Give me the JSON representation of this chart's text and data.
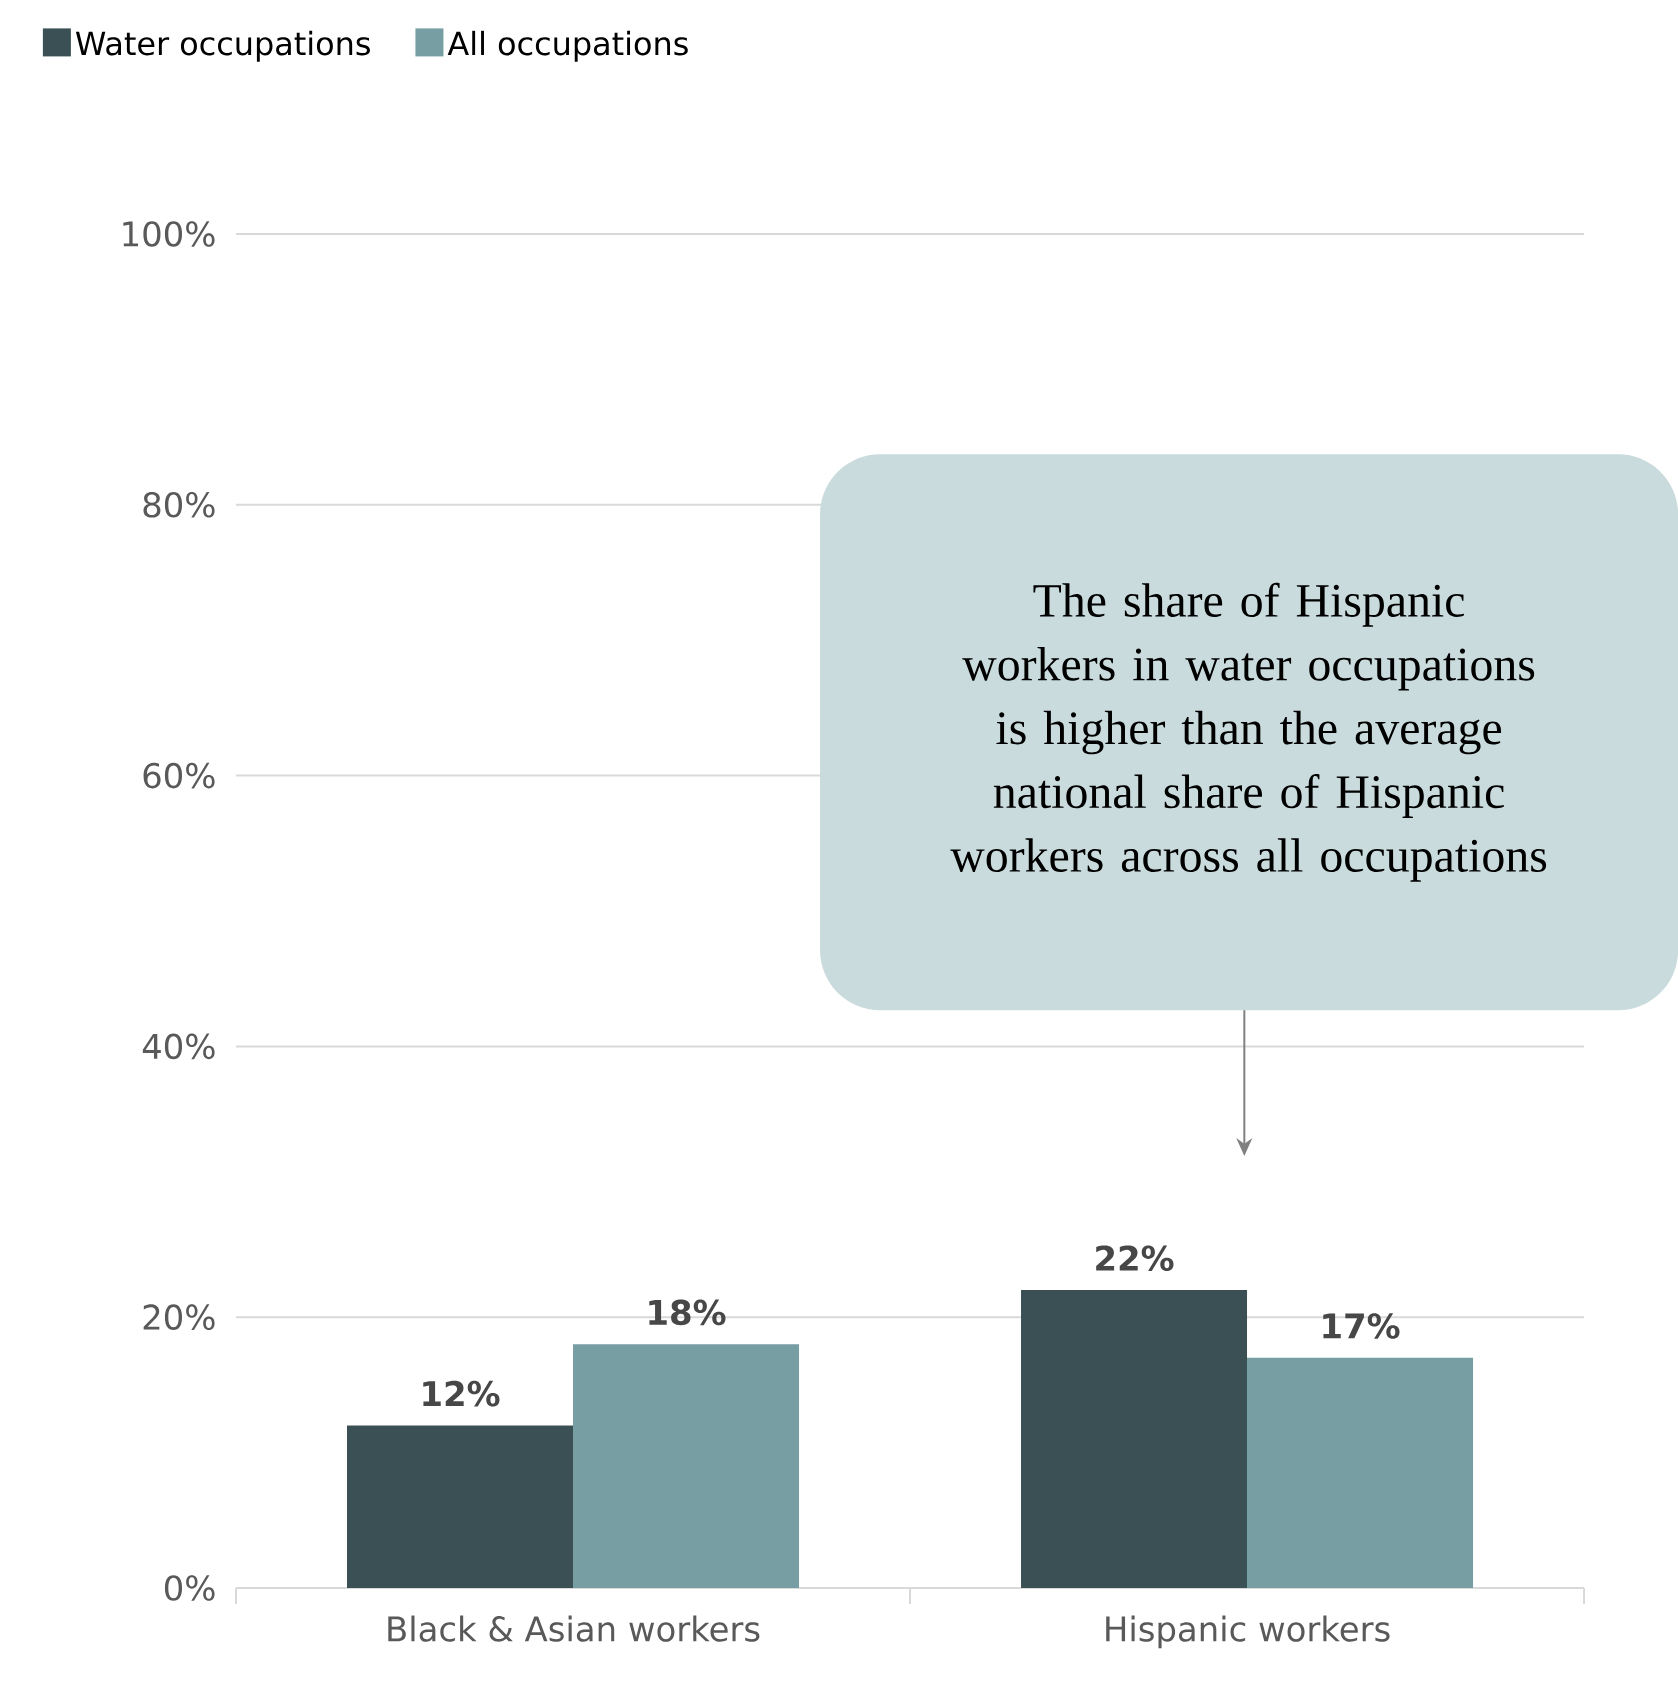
{
  "chart_data": {
    "type": "bar",
    "categories": [
      "Black & Asian workers",
      "Hispanic workers"
    ],
    "series": [
      {
        "name": "Water occupations",
        "color": "#3a5054",
        "values": [
          12,
          22
        ],
        "value_labels": [
          "12%",
          "22%"
        ]
      },
      {
        "name": "All occupations",
        "color": "#769ea3",
        "values": [
          18,
          17
        ],
        "value_labels": [
          "18%",
          "17%"
        ]
      }
    ],
    "ylim": [
      0,
      100
    ],
    "yticks": [
      {
        "value": 0,
        "label": "0%"
      },
      {
        "value": 20,
        "label": "20%"
      },
      {
        "value": 40,
        "label": "40%"
      },
      {
        "value": 60,
        "label": "60%"
      },
      {
        "value": 80,
        "label": "80%"
      },
      {
        "value": 100,
        "label": "100%"
      }
    ],
    "grid": "y",
    "legend": "top left",
    "annotations": [
      "The share of Hispanic workers in water occupations is higher than the average national share of Hispanic workers across all occupations"
    ]
  }
}
